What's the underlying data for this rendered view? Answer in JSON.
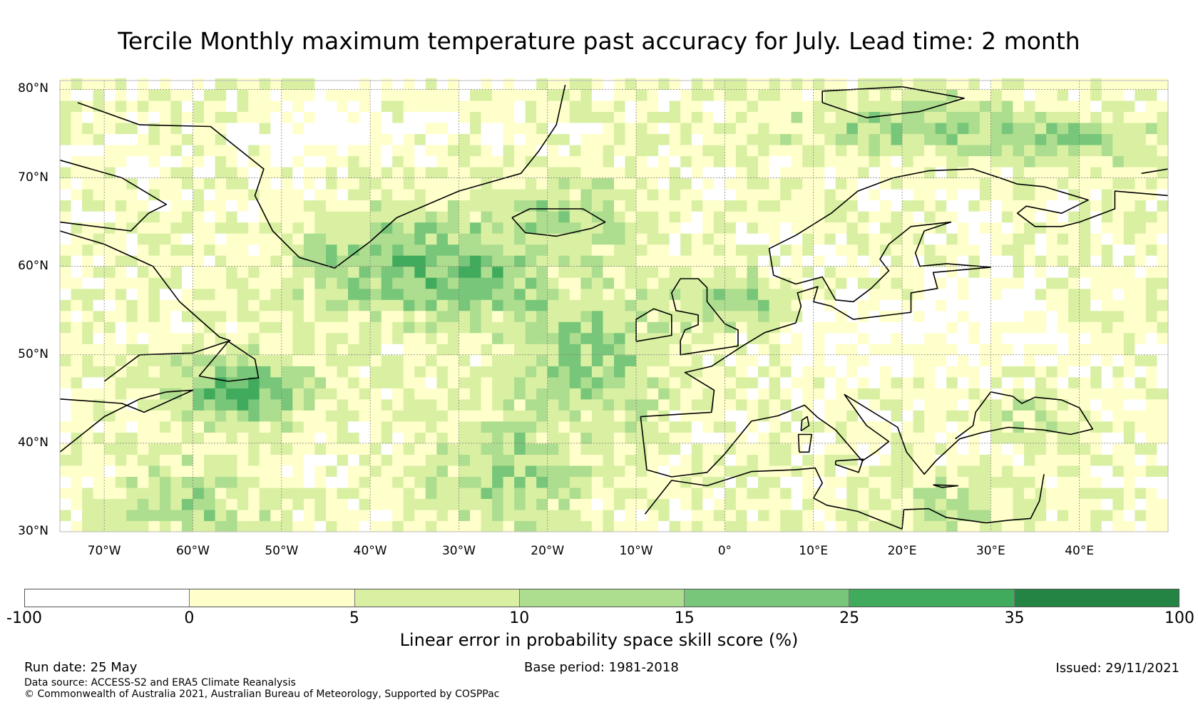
{
  "title": "Tercile Monthly maximum temperature past accuracy for July. Lead time: 2 month",
  "map": {
    "lat_labels": [
      "80°N",
      "70°N",
      "60°N",
      "50°N",
      "40°N",
      "30°N"
    ],
    "lon_labels": [
      "70°W",
      "60°W",
      "50°W",
      "40°W",
      "30°W",
      "20°W",
      "10°W",
      "0°",
      "10°E",
      "20°E",
      "30°E",
      "40°E"
    ],
    "lat_range": [
      30,
      81
    ],
    "lon_range": [
      -75,
      50
    ]
  },
  "legend": {
    "title": "Linear error in probability space skill score (%)",
    "ticks": [
      "-100",
      "0",
      "5",
      "10",
      "15",
      "25",
      "35",
      "100"
    ],
    "colors": [
      "#ffffff",
      "#ffffcc",
      "#d9f0a3",
      "#addd8e",
      "#78c679",
      "#41ab5d",
      "#238443"
    ]
  },
  "footer": {
    "run_date": "Run date: 25 May",
    "base_period": "Base period: 1981-2018",
    "issued": "Issued: 29/11/2021",
    "data_source": "Data source: ACCESS-S2 and ERA5 Climate Reanalysis",
    "copyright": "© Commonwealth of Australia 2021, Australian Bureau of Meteorology, Supported by COSPPac"
  }
}
